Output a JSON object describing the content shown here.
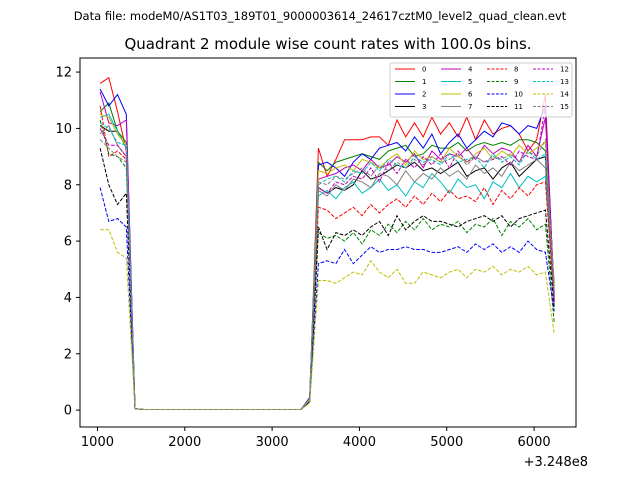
{
  "header": {
    "datafile": "Data file: modeM0/AS1T03_189T01_9000003614_24617cztM0_level2_quad_clean.evt"
  },
  "chart_data": {
    "type": "line",
    "title": "Quadrant 2 module wise count rates with 100.0s bins.",
    "xlabel": "",
    "ylabel": "",
    "x_offset_label": "+3.248e8",
    "xlim": [
      800,
      6480
    ],
    "ylim": [
      -0.6,
      12.5
    ],
    "xticks": [
      1000,
      2000,
      3000,
      4000,
      5000,
      6000
    ],
    "yticks": [
      0,
      2,
      4,
      6,
      8,
      10,
      12
    ],
    "x": [
      1030,
      1130,
      1230,
      1330,
      1430,
      1530,
      1630,
      1730,
      1830,
      1930,
      2030,
      2130,
      2230,
      2330,
      2430,
      2530,
      2630,
      2730,
      2830,
      2930,
      3030,
      3130,
      3230,
      3330,
      3430,
      3530,
      3630,
      3730,
      3830,
      3930,
      4030,
      4130,
      4230,
      4330,
      4430,
      4530,
      4630,
      4730,
      4830,
      4930,
      5030,
      5130,
      5230,
      5330,
      5430,
      5530,
      5630,
      5730,
      5830,
      5930,
      6030,
      6130,
      6230
    ],
    "legend_position": "upper-right",
    "legend_columns": 4,
    "series": [
      {
        "name": "0",
        "color": "#ff0000",
        "dash": false,
        "values": [
          11.6,
          11.8,
          10.6,
          9.2,
          0.05,
          0.02,
          0.02,
          0.02,
          0.02,
          0.02,
          0.02,
          0.02,
          0.02,
          0.02,
          0.02,
          0.02,
          0.02,
          0.02,
          0.02,
          0.02,
          0.02,
          0.02,
          0.02,
          0.02,
          0.35,
          9.3,
          8.3,
          8.9,
          9.6,
          9.6,
          9.6,
          9.7,
          9.7,
          9.4,
          10.3,
          9.7,
          10.2,
          9.7,
          10.4,
          9.8,
          10.2,
          9.7,
          10.4,
          9.6,
          10.3,
          9.8,
          10.0,
          10.1,
          9.8,
          9.2,
          9.6,
          11.2,
          3.8
        ]
      },
      {
        "name": "1",
        "color": "#008000",
        "dash": false,
        "values": [
          10.6,
          10.9,
          9.9,
          9.5,
          0.05,
          0.02,
          0.02,
          0.02,
          0.02,
          0.02,
          0.02,
          0.02,
          0.02,
          0.02,
          0.02,
          0.02,
          0.02,
          0.02,
          0.02,
          0.02,
          0.02,
          0.02,
          0.02,
          0.02,
          0.4,
          8.8,
          8.5,
          8.8,
          8.9,
          9.0,
          9.1,
          9.0,
          8.9,
          9.2,
          9.3,
          9.4,
          9.0,
          9.1,
          9.4,
          9.3,
          9.3,
          9.5,
          9.2,
          9.4,
          9.5,
          9.4,
          9.5,
          9.4,
          9.6,
          9.6,
          9.5,
          9.2,
          4.5
        ]
      },
      {
        "name": "2",
        "color": "#0000ff",
        "dash": false,
        "values": [
          11.4,
          10.8,
          11.2,
          10.5,
          0.05,
          0.02,
          0.02,
          0.02,
          0.02,
          0.02,
          0.02,
          0.02,
          0.02,
          0.02,
          0.02,
          0.02,
          0.02,
          0.02,
          0.02,
          0.02,
          0.02,
          0.02,
          0.02,
          0.02,
          0.45,
          8.7,
          8.8,
          8.6,
          8.3,
          8.8,
          9.1,
          8.9,
          9.3,
          9.4,
          9.5,
          9.2,
          9.7,
          9.3,
          9.8,
          9.1,
          9.5,
          9.8,
          9.3,
          9.6,
          9.9,
          9.7,
          10.2,
          10.1,
          9.8,
          10.1,
          10.0,
          10.8,
          4.1
        ]
      },
      {
        "name": "3",
        "color": "#000000",
        "dash": false,
        "values": [
          10.1,
          9.9,
          9.9,
          9.3,
          0.05,
          0.02,
          0.02,
          0.02,
          0.02,
          0.02,
          0.02,
          0.02,
          0.02,
          0.02,
          0.02,
          0.02,
          0.02,
          0.02,
          0.02,
          0.02,
          0.02,
          0.02,
          0.02,
          0.02,
          0.4,
          7.9,
          7.7,
          7.9,
          7.8,
          8.0,
          8.5,
          8.2,
          8.3,
          8.5,
          8.7,
          8.6,
          8.8,
          8.5,
          8.6,
          8.4,
          8.6,
          8.8,
          8.3,
          8.5,
          8.6,
          8.2,
          8.6,
          8.8,
          8.3,
          8.6,
          8.9,
          9.0,
          4.0
        ]
      },
      {
        "name": "4",
        "color": "#bf00bf",
        "dash": false,
        "values": [
          11.3,
          10.2,
          10.1,
          10.3,
          0.05,
          0.02,
          0.02,
          0.02,
          0.02,
          0.02,
          0.02,
          0.02,
          0.02,
          0.02,
          0.02,
          0.02,
          0.02,
          0.02,
          0.02,
          0.02,
          0.02,
          0.02,
          0.02,
          0.02,
          0.4,
          8.2,
          8.3,
          8.4,
          8.6,
          8.7,
          8.5,
          8.9,
          8.6,
          8.7,
          9.0,
          8.8,
          9.1,
          8.6,
          9.2,
          8.9,
          9.1,
          9.0,
          9.3,
          8.9,
          9.4,
          9.1,
          9.3,
          9.2,
          8.8,
          9.4,
          9.0,
          10.4,
          4.2
        ]
      },
      {
        "name": "5",
        "color": "#00bfbf",
        "dash": false,
        "values": [
          10.4,
          10.5,
          9.9,
          9.3,
          0.05,
          0.02,
          0.02,
          0.02,
          0.02,
          0.02,
          0.02,
          0.02,
          0.02,
          0.02,
          0.02,
          0.02,
          0.02,
          0.02,
          0.02,
          0.02,
          0.02,
          0.02,
          0.02,
          0.02,
          0.3,
          7.6,
          7.8,
          7.5,
          7.9,
          8.1,
          7.7,
          7.9,
          8.2,
          7.8,
          8.0,
          7.6,
          8.1,
          7.9,
          8.4,
          8.1,
          7.7,
          8.2,
          7.9,
          8.0,
          7.5,
          8.1,
          7.9,
          8.4,
          7.9,
          8.3,
          8.1,
          8.3,
          3.7
        ]
      },
      {
        "name": "6",
        "color": "#bfbf00",
        "dash": false,
        "values": [
          10.5,
          10.4,
          9.8,
          9.4,
          0.05,
          0.02,
          0.02,
          0.02,
          0.02,
          0.02,
          0.02,
          0.02,
          0.02,
          0.02,
          0.02,
          0.02,
          0.02,
          0.02,
          0.02,
          0.02,
          0.02,
          0.02,
          0.02,
          0.02,
          0.4,
          8.5,
          8.4,
          8.6,
          8.7,
          8.5,
          8.9,
          8.8,
          8.6,
          8.9,
          9.1,
          8.7,
          9.2,
          8.9,
          9.0,
          8.8,
          9.3,
          9.0,
          8.8,
          9.1,
          9.3,
          8.9,
          9.2,
          9.0,
          9.4,
          9.1,
          9.3,
          9.5,
          4.4
        ]
      },
      {
        "name": "7",
        "color": "#808080",
        "dash": false,
        "values": [
          9.8,
          10.1,
          9.4,
          9.0,
          0.05,
          0.02,
          0.02,
          0.02,
          0.02,
          0.02,
          0.02,
          0.02,
          0.02,
          0.02,
          0.02,
          0.02,
          0.02,
          0.02,
          0.02,
          0.02,
          0.02,
          0.02,
          0.02,
          0.02,
          0.35,
          7.8,
          7.6,
          8.0,
          7.8,
          8.2,
          8.1,
          7.9,
          8.4,
          8.3,
          8.0,
          8.5,
          8.1,
          8.4,
          8.2,
          8.6,
          8.3,
          8.5,
          8.2,
          8.7,
          8.4,
          8.6,
          8.3,
          8.8,
          8.5,
          8.7,
          8.9,
          8.6,
          4.0
        ]
      },
      {
        "name": "8",
        "color": "#ff0000",
        "dash": true,
        "values": [
          10.8,
          9.0,
          9.2,
          8.9,
          0.05,
          0.02,
          0.02,
          0.02,
          0.02,
          0.02,
          0.02,
          0.02,
          0.02,
          0.02,
          0.02,
          0.02,
          0.02,
          0.02,
          0.02,
          0.02,
          0.02,
          0.02,
          0.02,
          0.02,
          0.35,
          7.2,
          7.1,
          6.8,
          7.0,
          7.2,
          6.9,
          7.3,
          7.0,
          7.3,
          7.5,
          7.2,
          7.6,
          7.3,
          7.7,
          7.4,
          7.8,
          7.5,
          7.6,
          7.4,
          7.9,
          7.3,
          7.8,
          7.5,
          7.9,
          7.6,
          8.0,
          8.1,
          3.9
        ]
      },
      {
        "name": "9",
        "color": "#008000",
        "dash": true,
        "values": [
          10.3,
          9.1,
          9.0,
          8.6,
          0.05,
          0.02,
          0.02,
          0.02,
          0.02,
          0.02,
          0.02,
          0.02,
          0.02,
          0.02,
          0.02,
          0.02,
          0.02,
          0.02,
          0.02,
          0.02,
          0.02,
          0.02,
          0.02,
          0.02,
          0.3,
          6.3,
          6.1,
          6.2,
          6.0,
          6.3,
          5.9,
          6.4,
          6.2,
          6.6,
          6.3,
          6.7,
          6.4,
          6.8,
          6.4,
          6.6,
          6.5,
          6.7,
          6.3,
          6.6,
          6.5,
          6.8,
          6.2,
          6.7,
          6.5,
          6.8,
          6.4,
          6.6,
          3.1
        ]
      },
      {
        "name": "10",
        "color": "#0000ff",
        "dash": true,
        "values": [
          7.9,
          6.7,
          6.8,
          6.5,
          0.05,
          0.02,
          0.02,
          0.02,
          0.02,
          0.02,
          0.02,
          0.02,
          0.02,
          0.02,
          0.02,
          0.02,
          0.02,
          0.02,
          0.02,
          0.02,
          0.02,
          0.02,
          0.02,
          0.02,
          0.3,
          5.2,
          5.3,
          5.2,
          5.7,
          5.2,
          5.5,
          5.8,
          5.6,
          5.7,
          5.7,
          5.8,
          5.7,
          5.7,
          5.6,
          5.6,
          5.7,
          5.8,
          5.6,
          5.9,
          5.7,
          5.9,
          5.6,
          5.8,
          5.6,
          6.0,
          5.7,
          5.6,
          3.5
        ]
      },
      {
        "name": "11",
        "color": "#000000",
        "dash": true,
        "values": [
          9.3,
          8.0,
          7.3,
          7.7,
          0.05,
          0.02,
          0.02,
          0.02,
          0.02,
          0.02,
          0.02,
          0.02,
          0.02,
          0.02,
          0.02,
          0.02,
          0.02,
          0.02,
          0.02,
          0.02,
          0.02,
          0.02,
          0.02,
          0.02,
          0.3,
          6.5,
          5.7,
          6.3,
          6.2,
          6.4,
          6.2,
          6.5,
          6.7,
          6.2,
          6.9,
          6.4,
          6.7,
          6.9,
          6.7,
          6.7,
          6.6,
          6.5,
          6.7,
          6.8,
          6.9,
          6.7,
          6.9,
          6.5,
          6.8,
          6.9,
          7.0,
          7.1,
          3.6
        ]
      },
      {
        "name": "12",
        "color": "#bf00bf",
        "dash": true,
        "values": [
          10.0,
          9.4,
          9.4,
          9.0,
          0.05,
          0.02,
          0.02,
          0.02,
          0.02,
          0.02,
          0.02,
          0.02,
          0.02,
          0.02,
          0.02,
          0.02,
          0.02,
          0.02,
          0.02,
          0.02,
          0.02,
          0.02,
          0.02,
          0.02,
          0.35,
          7.9,
          7.7,
          8.1,
          8.0,
          8.3,
          8.2,
          8.6,
          8.1,
          8.8,
          8.4,
          8.9,
          8.6,
          9.0,
          8.7,
          9.1,
          8.6,
          9.2,
          8.8,
          9.0,
          8.8,
          8.9,
          9.0,
          8.7,
          9.2,
          9.0,
          8.9,
          10.8,
          3.8
        ]
      },
      {
        "name": "13",
        "color": "#00bfbf",
        "dash": true,
        "values": [
          10.2,
          10.0,
          9.5,
          9.4,
          0.05,
          0.02,
          0.02,
          0.02,
          0.02,
          0.02,
          0.02,
          0.02,
          0.02,
          0.02,
          0.02,
          0.02,
          0.02,
          0.02,
          0.02,
          0.02,
          0.02,
          0.02,
          0.02,
          0.02,
          0.35,
          8.0,
          8.2,
          8.3,
          8.1,
          8.5,
          8.4,
          8.8,
          8.5,
          8.9,
          8.7,
          8.6,
          9.0,
          8.8,
          8.9,
          8.7,
          9.1,
          8.8,
          8.9,
          9.0,
          8.6,
          9.1,
          8.8,
          9.0,
          8.7,
          9.2,
          8.9,
          9.1,
          4.3
        ]
      },
      {
        "name": "14",
        "color": "#bfbf00",
        "dash": true,
        "values": [
          6.4,
          6.4,
          5.6,
          5.4,
          0.05,
          0.02,
          0.02,
          0.02,
          0.02,
          0.02,
          0.02,
          0.02,
          0.02,
          0.02,
          0.02,
          0.02,
          0.02,
          0.02,
          0.02,
          0.02,
          0.02,
          0.02,
          0.02,
          0.02,
          0.25,
          4.6,
          4.6,
          4.5,
          4.7,
          4.9,
          4.8,
          5.3,
          4.9,
          4.7,
          5.0,
          4.5,
          4.5,
          4.9,
          4.8,
          4.7,
          4.9,
          5.0,
          4.7,
          5.0,
          4.9,
          5.1,
          4.8,
          5.0,
          4.9,
          5.1,
          4.8,
          4.9,
          2.7
        ]
      },
      {
        "name": "15",
        "color": "#808080",
        "dash": true,
        "values": [
          9.6,
          9.3,
          9.0,
          8.8,
          0.05,
          0.02,
          0.02,
          0.02,
          0.02,
          0.02,
          0.02,
          0.02,
          0.02,
          0.02,
          0.02,
          0.02,
          0.02,
          0.02,
          0.02,
          0.02,
          0.02,
          0.02,
          0.02,
          0.02,
          0.35,
          8.1,
          8.0,
          8.3,
          8.2,
          8.4,
          8.6,
          8.3,
          8.7,
          8.5,
          8.8,
          8.6,
          8.9,
          8.7,
          9.0,
          8.8,
          8.9,
          9.1,
          8.7,
          9.0,
          8.8,
          9.0,
          8.9,
          9.1,
          8.8,
          9.2,
          9.0,
          9.6,
          4.1
        ]
      }
    ]
  }
}
